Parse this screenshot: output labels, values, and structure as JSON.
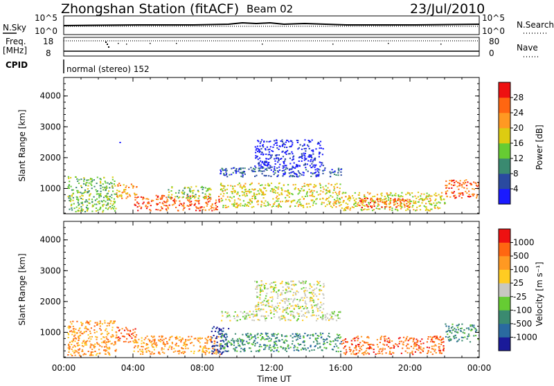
{
  "header": {
    "station_title": "Zhongshan Station (fitACF)",
    "beam": "Beam 02",
    "date": "23/Jul/2010"
  },
  "top_panels": {
    "nsky_label": "N.Sky",
    "nsky_ticks": [
      "10^5",
      "10^0"
    ],
    "nsearch_label": "N.Search",
    "nsearch_ticks": [
      "10^5",
      "10^0"
    ],
    "freq_label": "Freq.",
    "freq_unit": "[MHz]",
    "freq_ticks": [
      "18",
      "8"
    ],
    "nave_label": "Nave",
    "nave_ticks": [
      "80",
      "0"
    ],
    "cpid_label": "CPID",
    "cpid_text": "normal (stereo) 152"
  },
  "chart_data": [
    {
      "type": "heatmap",
      "name": "power-panel",
      "ylabel": "Slant Range [km]",
      "xlabel": "Time UT",
      "x_ticks": [
        "00:00",
        "04:00",
        "08:00",
        "12:00",
        "16:00",
        "20:00",
        "00:00"
      ],
      "y_ticks": [
        1000,
        2000,
        3000,
        4000
      ],
      "xlim_hours": [
        0,
        24
      ],
      "ylim_km": [
        180,
        4600
      ],
      "colorbar": {
        "label": "Power [dB]",
        "ticks": [
          "4",
          "8",
          "12",
          "16",
          "20",
          "24",
          "28"
        ],
        "colors": [
          "#1a1aff",
          "#2a4aa0",
          "#3a8a70",
          "#66cc33",
          "#ddcc11",
          "#ff9922",
          "#ff6611",
          "#ee1111"
        ]
      },
      "regions": [
        {
          "t": [
            0.2,
            3.0
          ],
          "r": [
            250,
            1400
          ],
          "level": 3
        },
        {
          "t": [
            3.0,
            4.2
          ],
          "r": [
            700,
            1200
          ],
          "level": 5
        },
        {
          "t": [
            4.0,
            9.0
          ],
          "r": [
            300,
            800
          ],
          "level": 6
        },
        {
          "t": [
            6.0,
            8.5
          ],
          "r": [
            700,
            1100
          ],
          "level": 3
        },
        {
          "t": [
            9.0,
            16.0
          ],
          "r": [
            1400,
            1700
          ],
          "level": 1
        },
        {
          "t": [
            11.0,
            15.0
          ],
          "r": [
            1700,
            2600
          ],
          "level": 0
        },
        {
          "t": [
            9.0,
            16.0
          ],
          "r": [
            400,
            1200
          ],
          "level": 4
        },
        {
          "t": [
            16.0,
            22.0
          ],
          "r": [
            300,
            900
          ],
          "level": 4
        },
        {
          "t": [
            17.0,
            20.0
          ],
          "r": [
            400,
            700
          ],
          "level": 6
        },
        {
          "t": [
            22.0,
            24.0
          ],
          "r": [
            700,
            1300
          ],
          "level": 6
        },
        {
          "t": [
            3.0,
            3.3
          ],
          "r": [
            2480,
            2560
          ],
          "level": 0
        }
      ]
    },
    {
      "type": "heatmap",
      "name": "velocity-panel",
      "ylabel": "Slant Range [km]",
      "xlabel": "Time UT",
      "x_ticks": [
        "00:00",
        "04:00",
        "08:00",
        "12:00",
        "16:00",
        "20:00",
        "00:00"
      ],
      "y_ticks": [
        1000,
        2000,
        3000,
        4000
      ],
      "xlim_hours": [
        0,
        24
      ],
      "ylim_km": [
        180,
        4600
      ],
      "colorbar": {
        "label": "Velocity [m s⁻¹]",
        "ticks": [
          "1000",
          "500",
          "100",
          "25",
          "-25",
          "-100",
          "-500",
          "-1000"
        ],
        "colors": [
          "#1a1a99",
          "#2a6aa0",
          "#3a8a70",
          "#66cc33",
          "#c8c8c0",
          "#ffcc22",
          "#ff9922",
          "#ff6611",
          "#ee1111"
        ]
      },
      "regions": [
        {
          "t": [
            0.2,
            3.0
          ],
          "r": [
            250,
            1400
          ],
          "level": 6
        },
        {
          "t": [
            3.0,
            4.2
          ],
          "r": [
            700,
            1200
          ],
          "level": 7
        },
        {
          "t": [
            4.0,
            9.0
          ],
          "r": [
            300,
            900
          ],
          "level": 6
        },
        {
          "t": [
            8.5,
            9.5
          ],
          "r": [
            300,
            1200
          ],
          "level": 0
        },
        {
          "t": [
            9.0,
            16.0
          ],
          "r": [
            1400,
            1700
          ],
          "level": 4
        },
        {
          "t": [
            11.0,
            15.0
          ],
          "r": [
            1700,
            2700
          ],
          "level": 4
        },
        {
          "t": [
            9.0,
            16.0
          ],
          "r": [
            400,
            1000
          ],
          "level": 2
        },
        {
          "t": [
            16.0,
            22.0
          ],
          "r": [
            300,
            900
          ],
          "level": 7
        },
        {
          "t": [
            22.0,
            24.0
          ],
          "r": [
            700,
            1300
          ],
          "level": 2
        },
        {
          "t": [
            3.0,
            3.3
          ],
          "r": [
            2480,
            2560
          ],
          "level": 4
        }
      ]
    }
  ]
}
